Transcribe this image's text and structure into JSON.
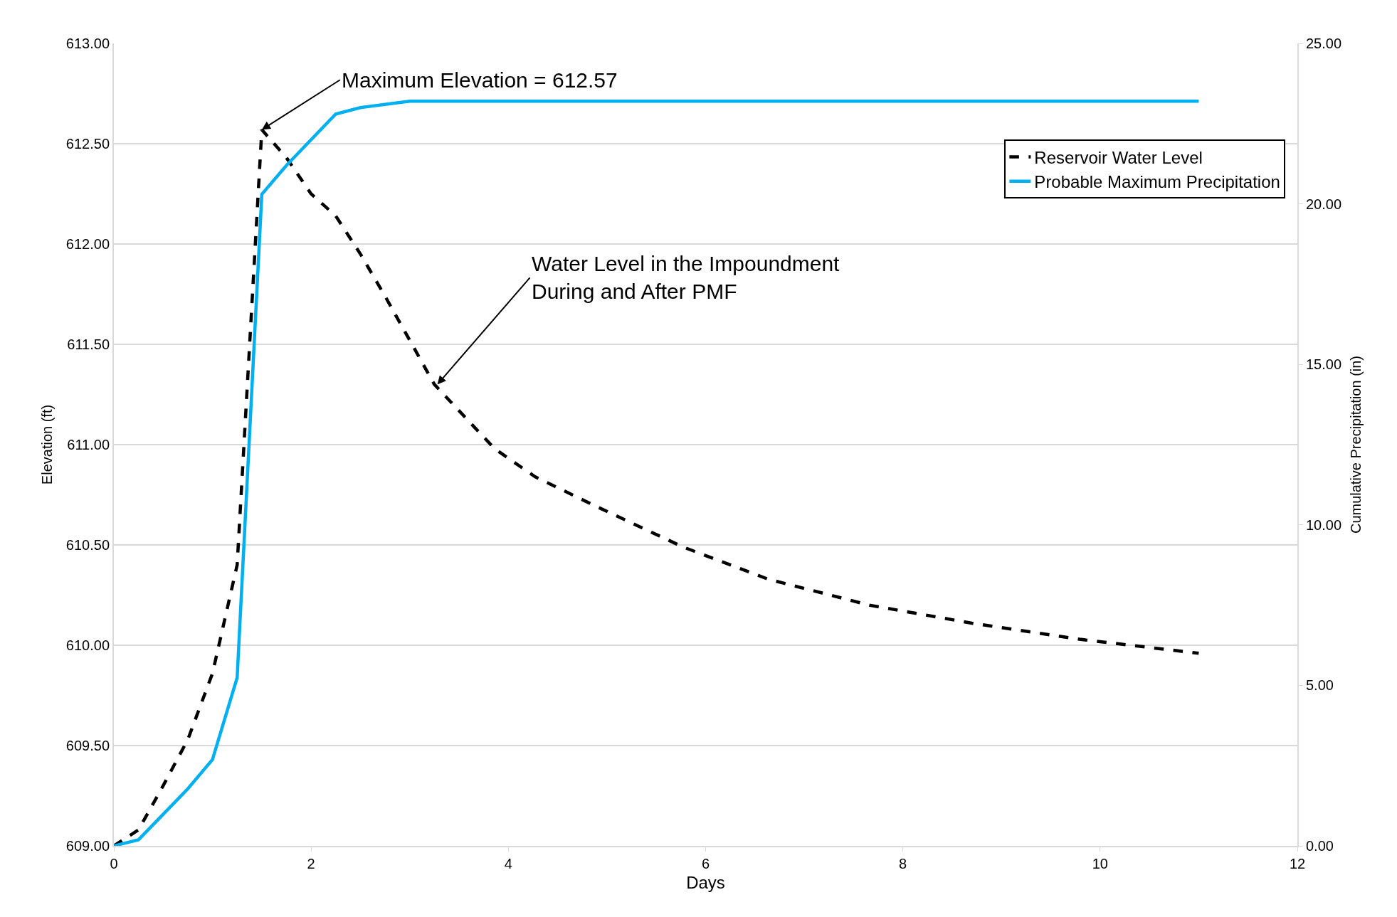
{
  "chart_data": {
    "type": "line",
    "xlabel": "Days",
    "ylabel": "Elevation (ft)",
    "y2label": "Cumulative Precipitation (in)",
    "xlim": [
      0,
      12
    ],
    "xticks": [
      0,
      2,
      4,
      6,
      8,
      10,
      12
    ],
    "ylim": [
      609,
      613
    ],
    "yticks": [
      {
        "value": 609,
        "label": "609.00"
      },
      {
        "value": 609.5,
        "label": "609.50"
      },
      {
        "value": 610,
        "label": "610.00"
      },
      {
        "value": 610.5,
        "label": "610.50"
      },
      {
        "value": 611,
        "label": "611.00"
      },
      {
        "value": 611.5,
        "label": "611.50"
      },
      {
        "value": 612,
        "label": "612.00"
      },
      {
        "value": 612.5,
        "label": "612.50"
      },
      {
        "value": 613,
        "label": "613.00"
      }
    ],
    "y2lim": [
      0,
      25
    ],
    "y2ticks": [
      {
        "value": 0,
        "label": "0.00"
      },
      {
        "value": 5,
        "label": "5.00"
      },
      {
        "value": 10,
        "label": "10.00"
      },
      {
        "value": 15,
        "label": "15.00"
      },
      {
        "value": 20,
        "label": "20.00"
      },
      {
        "value": 25,
        "label": "25.00"
      }
    ],
    "grid": "y",
    "legend": "top right",
    "series": [
      {
        "name": "Reservoir Water Level",
        "color": "#000000",
        "line_style": "dashed",
        "x": [
          0,
          0.25,
          0.5,
          0.75,
          1.0,
          1.25,
          1.5,
          1.75,
          2.0,
          2.25,
          2.5,
          2.75,
          3.0,
          3.25,
          3.86,
          4.27,
          4.9,
          5.77,
          6.63,
          7.66,
          8.7,
          9.79,
          11.0
        ],
        "values": [
          609.0,
          609.08,
          609.3,
          609.53,
          609.86,
          610.4,
          612.57,
          612.43,
          612.25,
          612.14,
          611.95,
          611.74,
          611.52,
          611.3,
          610.98,
          610.84,
          610.69,
          610.49,
          610.33,
          610.2,
          610.11,
          610.03,
          609.96
        ]
      },
      {
        "name": "Probable Maximum Precipitation",
        "color": "#00b0f0",
        "line_style": "solid",
        "axis": "y2",
        "x": [
          0,
          0.25,
          0.75,
          1.0,
          1.25,
          1.5,
          1.75,
          2.25,
          2.5,
          3.0,
          11.0
        ],
        "values": [
          0,
          0.19,
          1.78,
          2.69,
          5.24,
          20.3,
          21.2,
          22.8,
          23.0,
          23.2,
          23.2
        ]
      }
    ],
    "annotations": [
      {
        "text": "Maximum Elevation = 612.57",
        "x": 1.5,
        "y": 612.57
      },
      {
        "text": "Water Level in the Impoundment\nDuring and After PMF",
        "x": 3.28,
        "y": 611.3
      }
    ]
  }
}
